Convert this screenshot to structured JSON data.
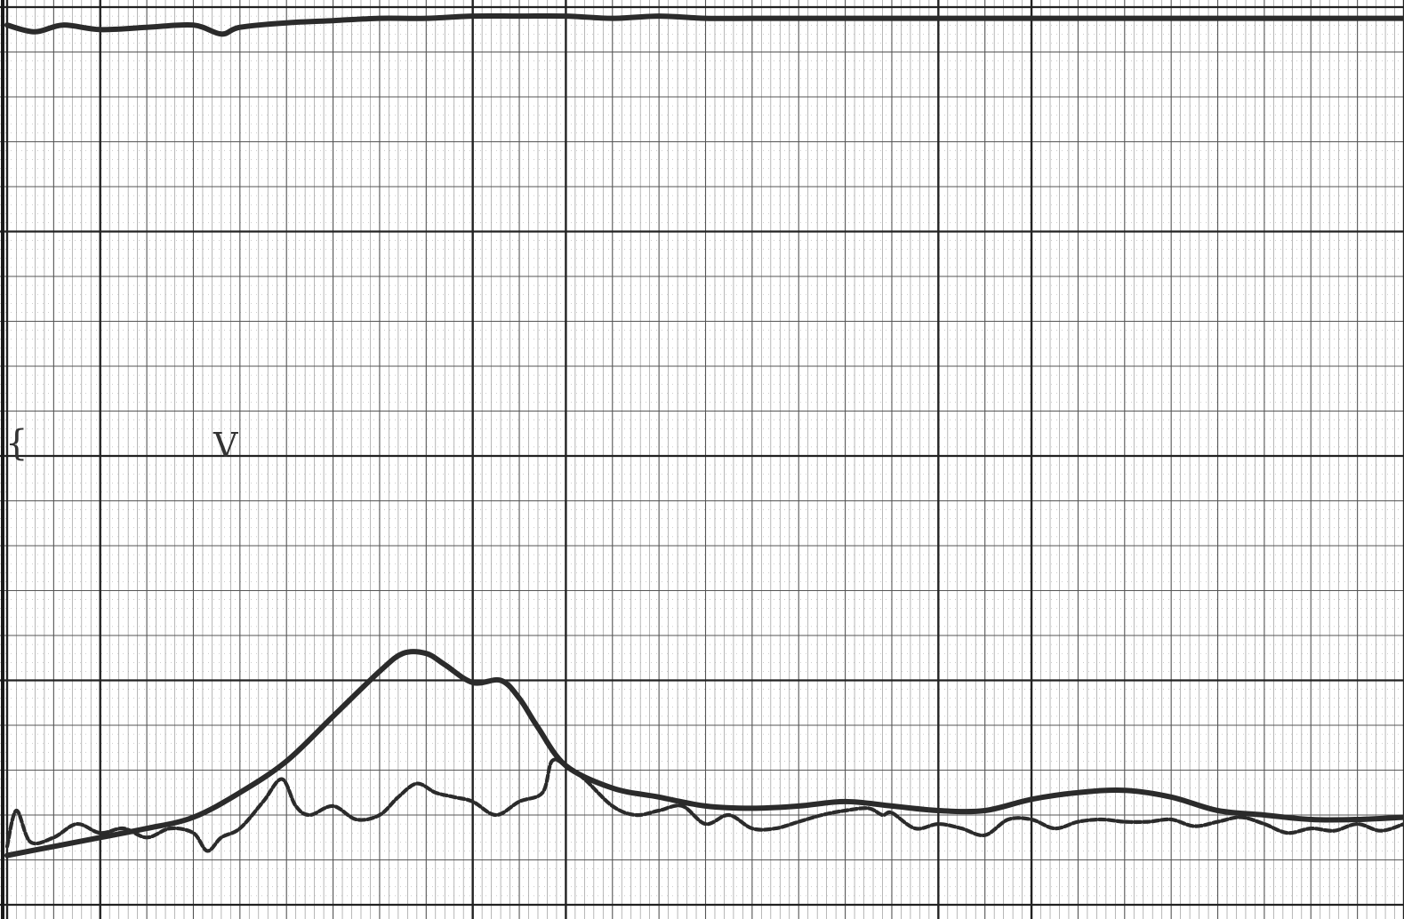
{
  "colors": {
    "paper": "#ffffff",
    "grid_minor": "#9a9a9a",
    "grid_major": "#555555",
    "grid_bold": "#222222",
    "ink": "#2b2b2b"
  },
  "handwritten_marks": [
    "{",
    "V"
  ],
  "chart_data": {
    "type": "line",
    "title": "",
    "xlabel": "",
    "ylabel": "",
    "grid": true,
    "tick_labels_printed": false,
    "xlim": [
      0,
      30
    ],
    "ylim": [
      0,
      20
    ],
    "series": [
      {
        "style": "solid",
        "x": [
          0,
          0.6,
          1.2,
          2,
          3,
          4,
          4.6,
          5,
          6,
          7,
          8,
          9,
          10,
          11,
          12,
          13,
          14,
          15,
          16,
          17,
          18,
          19,
          20,
          21,
          22,
          23,
          24,
          25,
          26,
          27,
          28,
          29,
          30
        ],
        "y": [
          19.6,
          19.45,
          19.6,
          19.5,
          19.55,
          19.6,
          19.4,
          19.55,
          19.65,
          19.7,
          19.75,
          19.75,
          19.8,
          19.8,
          19.8,
          19.75,
          19.8,
          19.75,
          19.75,
          19.75,
          19.75,
          19.75,
          19.75,
          19.75,
          19.75,
          19.75,
          19.75,
          19.75,
          19.75,
          19.75,
          19.75,
          19.75,
          19.75
        ]
      },
      {
        "style": "solid",
        "x": [
          0,
          1,
          2,
          3,
          4,
          5,
          6,
          7,
          8,
          8.5,
          9,
          9.4,
          10,
          10.6,
          11,
          11.4,
          12,
          13,
          14,
          15,
          16,
          17,
          18,
          19,
          20,
          21,
          22,
          23,
          24,
          25,
          26,
          27,
          28,
          29,
          30
        ],
        "y": [
          1.1,
          1.3,
          1.5,
          1.7,
          1.95,
          2.5,
          3.2,
          4.2,
          5.2,
          5.6,
          5.6,
          5.35,
          4.95,
          5.0,
          4.6,
          3.95,
          3.1,
          2.6,
          2.4,
          2.2,
          2.15,
          2.2,
          2.3,
          2.2,
          2.1,
          2.1,
          2.35,
          2.5,
          2.55,
          2.4,
          2.1,
          2.0,
          1.9,
          1.9,
          1.95
        ]
      },
      {
        "style": "dashed",
        "x": [
          0,
          0.2,
          0.5,
          1,
          1.5,
          2,
          2.5,
          3,
          3.5,
          4,
          4.3,
          4.6,
          5,
          5.5,
          5.9,
          6.2,
          6.5,
          7,
          7.5,
          8,
          8.4,
          8.8,
          9.2,
          9.6,
          10,
          10.5,
          11,
          11.5,
          11.7,
          12,
          12.4,
          13,
          13.5,
          14,
          14.5,
          15,
          15.5,
          16,
          16.5,
          17,
          17.5,
          18,
          18.5,
          18.8,
          19,
          19.5,
          20,
          20.5,
          21,
          21.5,
          22,
          22.5,
          23,
          23.5,
          24,
          24.5,
          25,
          25.5,
          26,
          26.5,
          27,
          27.5,
          28,
          28.5,
          29,
          29.5,
          30
        ],
        "y": [
          1.3,
          2.1,
          1.4,
          1.5,
          1.8,
          1.6,
          1.7,
          1.5,
          1.7,
          1.6,
          1.2,
          1.5,
          1.7,
          2.3,
          2.8,
          2.2,
          2.0,
          2.2,
          1.9,
          2.0,
          2.4,
          2.7,
          2.5,
          2.4,
          2.3,
          2.0,
          2.3,
          2.5,
          3.2,
          3.1,
          2.8,
          2.2,
          2.0,
          2.1,
          2.2,
          1.8,
          2.0,
          1.7,
          1.7,
          1.85,
          2.0,
          2.1,
          2.15,
          2.0,
          2.05,
          1.7,
          1.8,
          1.7,
          1.55,
          1.9,
          1.9,
          1.7,
          1.85,
          1.9,
          1.85,
          1.85,
          1.9,
          1.75,
          1.85,
          1.95,
          1.8,
          1.6,
          1.7,
          1.65,
          1.8,
          1.65,
          1.8
        ]
      }
    ]
  }
}
